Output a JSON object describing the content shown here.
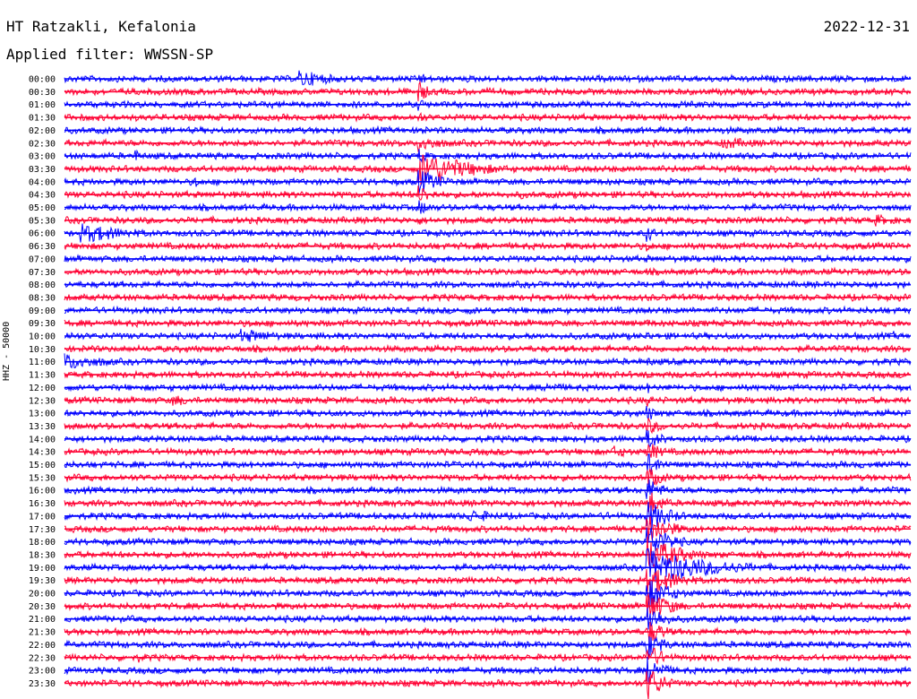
{
  "header": {
    "station": "HT Ratzakli, Kefalonia",
    "date": "2022-12-31",
    "filter": "Applied filter: WWSSN-SP"
  },
  "chart_data": {
    "type": "line",
    "title": "HT Ratzakli, Kefalonia",
    "subtitle": "Applied filter: WWSSN-SP",
    "ylabel": "HHZ - 50000",
    "grid": false,
    "colors": [
      "#0000ff",
      "#ff0033"
    ],
    "series": [
      {
        "label": "00:00",
        "events": [
          {
            "t": 0.28,
            "amp": 1.4,
            "dur": 0.05
          },
          {
            "t": 0.42,
            "amp": 1.2,
            "dur": 0.01
          }
        ]
      },
      {
        "label": "00:30",
        "events": [
          {
            "t": 0.005,
            "amp": 0.4,
            "dur": 0.01
          },
          {
            "t": 0.08,
            "amp": 0.3,
            "dur": 0.02
          },
          {
            "t": 0.42,
            "amp": 2.0,
            "dur": 0.01
          },
          {
            "t": 0.74,
            "amp": 0.3,
            "dur": 0.02
          }
        ]
      },
      {
        "label": "01:00",
        "events": [
          {
            "t": 0.42,
            "amp": 1.0,
            "dur": 0.01
          }
        ]
      },
      {
        "label": "01:30",
        "events": [
          {
            "t": 0.09,
            "amp": 0.3,
            "dur": 0.01
          },
          {
            "t": 0.42,
            "amp": 1.0,
            "dur": 0.01
          }
        ]
      },
      {
        "label": "02:00",
        "events": [
          {
            "t": 0.2,
            "amp": 0.4,
            "dur": 0.02
          },
          {
            "t": 0.42,
            "amp": 1.2,
            "dur": 0.01
          },
          {
            "t": 0.78,
            "amp": 0.6,
            "dur": 0.04
          }
        ]
      },
      {
        "label": "02:30",
        "events": [
          {
            "t": 0.42,
            "amp": 1.5,
            "dur": 0.03
          },
          {
            "t": 0.78,
            "amp": 1.0,
            "dur": 0.06
          }
        ]
      },
      {
        "label": "03:00",
        "events": [
          {
            "t": 0.085,
            "amp": 1.0,
            "dur": 0.01
          },
          {
            "t": 0.39,
            "amp": 0.4,
            "dur": 0.02
          },
          {
            "t": 0.42,
            "amp": 1.4,
            "dur": 0.01
          },
          {
            "t": 0.5,
            "amp": 0.4,
            "dur": 0.01
          }
        ]
      },
      {
        "label": "03:30",
        "events": [
          {
            "t": 0.42,
            "amp": 3.0,
            "dur": 0.06
          },
          {
            "t": 0.67,
            "amp": 0.3,
            "dur": 0.01
          }
        ]
      },
      {
        "label": "04:00",
        "events": [
          {
            "t": 0.155,
            "amp": 1.0,
            "dur": 0.01
          },
          {
            "t": 0.42,
            "amp": 2.0,
            "dur": 0.03
          },
          {
            "t": 0.66,
            "amp": 0.3,
            "dur": 0.02
          }
        ]
      },
      {
        "label": "04:30",
        "events": [
          {
            "t": 0.37,
            "amp": 0.3,
            "dur": 0.01
          },
          {
            "t": 0.42,
            "amp": 1.5,
            "dur": 0.02
          },
          {
            "t": 0.54,
            "amp": 0.7,
            "dur": 0.02
          }
        ]
      },
      {
        "label": "05:00",
        "events": [
          {
            "t": 0.42,
            "amp": 1.2,
            "dur": 0.02
          },
          {
            "t": 0.51,
            "amp": 0.4,
            "dur": 0.02
          },
          {
            "t": 0.86,
            "amp": 0.3,
            "dur": 0.01
          }
        ]
      },
      {
        "label": "05:30",
        "events": [
          {
            "t": 0.42,
            "amp": 0.8,
            "dur": 0.01
          },
          {
            "t": 0.53,
            "amp": 0.3,
            "dur": 0.02
          },
          {
            "t": 0.96,
            "amp": 1.0,
            "dur": 0.03
          }
        ]
      },
      {
        "label": "06:00",
        "events": [
          {
            "t": 0.02,
            "amp": 1.6,
            "dur": 0.07
          },
          {
            "t": 0.22,
            "amp": 0.4,
            "dur": 0.02
          },
          {
            "t": 0.44,
            "amp": 0.4,
            "dur": 0.02
          },
          {
            "t": 0.6,
            "amp": 0.3,
            "dur": 0.02
          },
          {
            "t": 0.69,
            "amp": 1.5,
            "dur": 0.01
          }
        ]
      },
      {
        "label": "06:30",
        "events": [
          {
            "t": 0.02,
            "amp": 0.6,
            "dur": 0.02
          },
          {
            "t": 0.37,
            "amp": 0.4,
            "dur": 0.02
          },
          {
            "t": 0.52,
            "amp": 0.3,
            "dur": 0.02
          },
          {
            "t": 0.69,
            "amp": 1.0,
            "dur": 0.01
          }
        ]
      },
      {
        "label": "07:00",
        "events": [
          {
            "t": 0.42,
            "amp": 0.5,
            "dur": 0.03
          },
          {
            "t": 0.69,
            "amp": 0.6,
            "dur": 0.01
          }
        ]
      },
      {
        "label": "07:30",
        "events": [
          {
            "t": 0.17,
            "amp": 0.4,
            "dur": 0.02
          },
          {
            "t": 0.44,
            "amp": 0.3,
            "dur": 0.03
          },
          {
            "t": 0.69,
            "amp": 0.6,
            "dur": 0.01
          }
        ]
      },
      {
        "label": "08:00",
        "events": [
          {
            "t": 0.3,
            "amp": 0.4,
            "dur": 0.03
          },
          {
            "t": 0.58,
            "amp": 0.4,
            "dur": 0.02
          },
          {
            "t": 0.69,
            "amp": 0.6,
            "dur": 0.01
          }
        ]
      },
      {
        "label": "08:30",
        "events": [
          {
            "t": 0.17,
            "amp": 0.5,
            "dur": 0.02
          },
          {
            "t": 0.34,
            "amp": 0.4,
            "dur": 0.04
          },
          {
            "t": 0.5,
            "amp": 0.5,
            "dur": 0.04
          },
          {
            "t": 0.69,
            "amp": 0.6,
            "dur": 0.01
          }
        ]
      },
      {
        "label": "09:00",
        "events": [
          {
            "t": 0.48,
            "amp": 0.6,
            "dur": 0.05
          },
          {
            "t": 0.56,
            "amp": 0.5,
            "dur": 0.01
          },
          {
            "t": 0.69,
            "amp": 0.6,
            "dur": 0.01
          },
          {
            "t": 0.79,
            "amp": 0.5,
            "dur": 0.02
          }
        ]
      },
      {
        "label": "09:30",
        "events": [
          {
            "t": 0.22,
            "amp": 0.6,
            "dur": 0.04
          },
          {
            "t": 0.55,
            "amp": 0.6,
            "dur": 0.01
          },
          {
            "t": 0.69,
            "amp": 0.7,
            "dur": 0.01
          },
          {
            "t": 0.8,
            "amp": 0.4,
            "dur": 0.04
          },
          {
            "t": 0.98,
            "amp": 0.6,
            "dur": 0.01
          }
        ]
      },
      {
        "label": "10:00",
        "events": [
          {
            "t": 0.0,
            "amp": 0.8,
            "dur": 0.04
          },
          {
            "t": 0.1,
            "amp": 0.4,
            "dur": 0.01
          },
          {
            "t": 0.21,
            "amp": 1.2,
            "dur": 0.06
          },
          {
            "t": 0.4,
            "amp": 0.5,
            "dur": 0.01
          },
          {
            "t": 0.45,
            "amp": 0.5,
            "dur": 0.04
          },
          {
            "t": 0.69,
            "amp": 0.8,
            "dur": 0.01
          },
          {
            "t": 0.98,
            "amp": 0.8,
            "dur": 0.01
          }
        ]
      },
      {
        "label": "10:30",
        "events": [
          {
            "t": 0.0,
            "amp": 0.5,
            "dur": 0.03
          },
          {
            "t": 0.03,
            "amp": 0.6,
            "dur": 0.02
          },
          {
            "t": 0.4,
            "amp": 0.4,
            "dur": 0.02
          },
          {
            "t": 0.69,
            "amp": 0.8,
            "dur": 0.01
          }
        ]
      },
      {
        "label": "11:00",
        "events": [
          {
            "t": 0.0,
            "amp": 1.4,
            "dur": 0.06
          },
          {
            "t": 0.22,
            "amp": 0.5,
            "dur": 0.02
          },
          {
            "t": 0.69,
            "amp": 0.8,
            "dur": 0.01
          },
          {
            "t": 0.8,
            "amp": 0.4,
            "dur": 0.01
          }
        ]
      },
      {
        "label": "11:30",
        "events": [
          {
            "t": 0.03,
            "amp": 0.5,
            "dur": 0.02
          },
          {
            "t": 0.13,
            "amp": 0.4,
            "dur": 0.01
          },
          {
            "t": 0.69,
            "amp": 0.8,
            "dur": 0.01
          }
        ]
      },
      {
        "label": "12:00",
        "events": [
          {
            "t": 0.03,
            "amp": 0.5,
            "dur": 0.01
          },
          {
            "t": 0.13,
            "amp": 0.5,
            "dur": 0.01
          },
          {
            "t": 0.46,
            "amp": 0.3,
            "dur": 0.02
          },
          {
            "t": 0.57,
            "amp": 0.8,
            "dur": 0.05
          },
          {
            "t": 0.69,
            "amp": 0.9,
            "dur": 0.01
          }
        ]
      },
      {
        "label": "12:30",
        "events": [
          {
            "t": 0.13,
            "amp": 1.0,
            "dur": 0.03
          },
          {
            "t": 0.42,
            "amp": 0.4,
            "dur": 0.03
          },
          {
            "t": 0.69,
            "amp": 1.0,
            "dur": 0.01
          }
        ]
      },
      {
        "label": "13:00",
        "events": [
          {
            "t": 0.55,
            "amp": 0.5,
            "dur": 0.05
          },
          {
            "t": 0.69,
            "amp": 1.4,
            "dur": 0.01
          }
        ]
      },
      {
        "label": "13:30",
        "events": [
          {
            "t": 0.33,
            "amp": 0.4,
            "dur": 0.05
          },
          {
            "t": 0.69,
            "amp": 1.4,
            "dur": 0.02
          },
          {
            "t": 0.87,
            "amp": 0.4,
            "dur": 0.03
          }
        ]
      },
      {
        "label": "14:00",
        "events": [
          {
            "t": 0.11,
            "amp": 0.5,
            "dur": 0.01
          },
          {
            "t": 0.4,
            "amp": 0.4,
            "dur": 0.02
          },
          {
            "t": 0.69,
            "amp": 1.6,
            "dur": 0.02
          }
        ]
      },
      {
        "label": "14:30",
        "events": [
          {
            "t": 0.11,
            "amp": 0.4,
            "dur": 0.01
          },
          {
            "t": 0.65,
            "amp": 1.0,
            "dur": 0.03
          },
          {
            "t": 0.69,
            "amp": 1.6,
            "dur": 0.02
          }
        ]
      },
      {
        "label": "15:00",
        "events": [
          {
            "t": 0.0,
            "amp": 0.5,
            "dur": 0.03
          },
          {
            "t": 0.37,
            "amp": 0.4,
            "dur": 0.02
          },
          {
            "t": 0.64,
            "amp": 0.5,
            "dur": 0.02
          },
          {
            "t": 0.69,
            "amp": 1.8,
            "dur": 0.02
          },
          {
            "t": 0.94,
            "amp": 0.6,
            "dur": 0.02
          }
        ]
      },
      {
        "label": "15:30",
        "events": [
          {
            "t": 0.22,
            "amp": 0.4,
            "dur": 0.02
          },
          {
            "t": 0.69,
            "amp": 1.8,
            "dur": 0.02
          },
          {
            "t": 0.94,
            "amp": 0.4,
            "dur": 0.02
          }
        ]
      },
      {
        "label": "16:00",
        "events": [
          {
            "t": 0.21,
            "amp": 0.6,
            "dur": 0.01
          },
          {
            "t": 0.47,
            "amp": 0.5,
            "dur": 0.01
          },
          {
            "t": 0.69,
            "amp": 2.0,
            "dur": 0.02
          },
          {
            "t": 0.91,
            "amp": 0.5,
            "dur": 0.01
          },
          {
            "t": 0.98,
            "amp": 0.6,
            "dur": 0.02
          }
        ]
      },
      {
        "label": "16:30",
        "events": [
          {
            "t": 0.14,
            "amp": 0.5,
            "dur": 0.05
          },
          {
            "t": 0.48,
            "amp": 0.4,
            "dur": 0.01
          },
          {
            "t": 0.69,
            "amp": 2.2,
            "dur": 0.02
          }
        ]
      },
      {
        "label": "17:00",
        "events": [
          {
            "t": 0.25,
            "amp": 0.4,
            "dur": 0.02
          },
          {
            "t": 0.48,
            "amp": 1.2,
            "dur": 0.04
          },
          {
            "t": 0.64,
            "amp": 0.7,
            "dur": 0.02
          },
          {
            "t": 0.69,
            "amp": 2.5,
            "dur": 0.03
          },
          {
            "t": 0.94,
            "amp": 0.4,
            "dur": 0.01
          }
        ]
      },
      {
        "label": "17:30",
        "events": [
          {
            "t": 0.16,
            "amp": 0.4,
            "dur": 0.01
          },
          {
            "t": 0.48,
            "amp": 0.5,
            "dur": 0.01
          },
          {
            "t": 0.69,
            "amp": 2.6,
            "dur": 0.03
          }
        ]
      },
      {
        "label": "18:00",
        "events": [
          {
            "t": 0.18,
            "amp": 0.5,
            "dur": 0.01
          },
          {
            "t": 0.48,
            "amp": 0.6,
            "dur": 0.01
          },
          {
            "t": 0.59,
            "amp": 0.5,
            "dur": 0.01
          },
          {
            "t": 0.69,
            "amp": 2.8,
            "dur": 0.03
          }
        ]
      },
      {
        "label": "18:30",
        "events": [
          {
            "t": 0.46,
            "amp": 0.3,
            "dur": 0.02
          },
          {
            "t": 0.69,
            "amp": 3.0,
            "dur": 0.04
          },
          {
            "t": 0.9,
            "amp": 0.4,
            "dur": 0.01
          }
        ]
      },
      {
        "label": "19:00",
        "events": [
          {
            "t": 0.07,
            "amp": 0.4,
            "dur": 0.01
          },
          {
            "t": 0.63,
            "amp": 0.5,
            "dur": 0.02
          },
          {
            "t": 0.69,
            "amp": 3.0,
            "dur": 0.08
          },
          {
            "t": 0.95,
            "amp": 0.4,
            "dur": 0.01
          }
        ]
      },
      {
        "label": "19:30",
        "events": [
          {
            "t": 0.06,
            "amp": 0.6,
            "dur": 0.01
          },
          {
            "t": 0.21,
            "amp": 0.6,
            "dur": 0.03
          },
          {
            "t": 0.69,
            "amp": 2.5,
            "dur": 0.04
          }
        ]
      },
      {
        "label": "20:00",
        "events": [
          {
            "t": 0.07,
            "amp": 0.6,
            "dur": 0.01
          },
          {
            "t": 0.69,
            "amp": 2.5,
            "dur": 0.03
          },
          {
            "t": 0.74,
            "amp": 0.4,
            "dur": 0.02
          }
        ]
      },
      {
        "label": "20:30",
        "events": [
          {
            "t": 0.06,
            "amp": 0.5,
            "dur": 0.01
          },
          {
            "t": 0.35,
            "amp": 0.6,
            "dur": 0.02
          },
          {
            "t": 0.69,
            "amp": 2.5,
            "dur": 0.03
          }
        ]
      },
      {
        "label": "21:00",
        "events": [
          {
            "t": 0.44,
            "amp": 0.6,
            "dur": 0.02
          },
          {
            "t": 0.55,
            "amp": 0.4,
            "dur": 0.02
          },
          {
            "t": 0.69,
            "amp": 2.5,
            "dur": 0.02
          }
        ]
      },
      {
        "label": "21:30",
        "events": [
          {
            "t": 0.28,
            "amp": 0.6,
            "dur": 0.01
          },
          {
            "t": 0.46,
            "amp": 0.4,
            "dur": 0.02
          },
          {
            "t": 0.69,
            "amp": 2.2,
            "dur": 0.02
          },
          {
            "t": 0.74,
            "amp": 0.4,
            "dur": 0.02
          }
        ]
      },
      {
        "label": "22:00",
        "events": [
          {
            "t": 0.33,
            "amp": 0.4,
            "dur": 0.01
          },
          {
            "t": 0.69,
            "amp": 2.2,
            "dur": 0.02
          },
          {
            "t": 0.76,
            "amp": 0.5,
            "dur": 0.01
          },
          {
            "t": 0.84,
            "amp": 0.4,
            "dur": 0.01
          }
        ]
      },
      {
        "label": "22:30",
        "events": [
          {
            "t": 0.09,
            "amp": 0.8,
            "dur": 0.02
          },
          {
            "t": 0.41,
            "amp": 0.4,
            "dur": 0.02
          },
          {
            "t": 0.69,
            "amp": 2.2,
            "dur": 0.02
          },
          {
            "t": 0.83,
            "amp": 0.5,
            "dur": 0.01
          }
        ]
      },
      {
        "label": "23:00",
        "events": [
          {
            "t": 0.18,
            "amp": 0.5,
            "dur": 0.01
          },
          {
            "t": 0.34,
            "amp": 0.4,
            "dur": 0.02
          },
          {
            "t": 0.69,
            "amp": 2.4,
            "dur": 0.02
          },
          {
            "t": 0.92,
            "amp": 0.5,
            "dur": 0.02
          }
        ]
      },
      {
        "label": "23:30",
        "events": [
          {
            "t": 0.05,
            "amp": 0.4,
            "dur": 0.02
          },
          {
            "t": 0.45,
            "amp": 0.4,
            "dur": 0.01
          },
          {
            "t": 0.69,
            "amp": 2.8,
            "dur": 0.02
          },
          {
            "t": 0.95,
            "amp": 0.5,
            "dur": 0.01
          }
        ]
      }
    ]
  }
}
